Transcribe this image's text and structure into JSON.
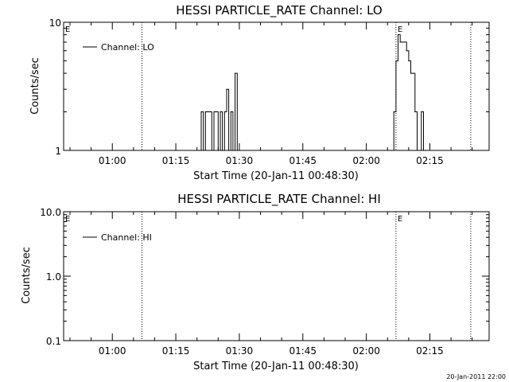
{
  "chart_data": [
    {
      "type": "line",
      "title": "HESSI PARTICLE_RATE Channel: LO",
      "xlabel": "Start Time (20-Jan-11 00:48:30)",
      "ylabel": "Counts/sec",
      "xlim": [
        "00:48:30",
        "02:29:00"
      ],
      "ylim": [
        1,
        10
      ],
      "yscale": "log",
      "ytick_labels": [
        "1",
        "10"
      ],
      "xtick_labels": [
        "01:00",
        "01:15",
        "01:30",
        "01:45",
        "02:00",
        "02:15"
      ],
      "legend_position": "top-left",
      "event_markers": [
        "01:07:00",
        "02:07:00",
        "02:24:40"
      ],
      "flags": [
        {
          "text": "E",
          "x": "00:48:30"
        },
        {
          "text": "E",
          "x": "02:07:00"
        }
      ],
      "series": [
        {
          "name": "Channel: LO",
          "x": [
            "01:20:30",
            "01:21:00",
            "01:21:30",
            "01:22:00",
            "01:22:30",
            "01:23:00",
            "01:23:30",
            "01:24:00",
            "01:24:30",
            "01:25:00",
            "01:25:30",
            "01:26:00",
            "01:26:30",
            "01:27:00",
            "01:27:30",
            "01:28:00",
            "01:28:30",
            "01:29:00",
            "01:29:30",
            "02:06:00",
            "02:06:30",
            "02:07:00",
            "02:07:30",
            "02:08:00",
            "02:08:30",
            "02:09:00",
            "02:09:30",
            "02:10:00",
            "02:10:30",
            "02:11:00",
            "02:11:30",
            "02:12:00",
            "02:12:30",
            "02:13:00",
            "02:13:30",
            "02:14:00",
            "02:14:30"
          ],
          "y": [
            1,
            2,
            1,
            2,
            2,
            2,
            1,
            2,
            2,
            1,
            2,
            1,
            2,
            3,
            1,
            2,
            1,
            4,
            1,
            1,
            2,
            5,
            8,
            7,
            7,
            7,
            6,
            5,
            4,
            4,
            2,
            1,
            1,
            2,
            1,
            1,
            1
          ]
        }
      ]
    },
    {
      "type": "line",
      "title": "HESSI PARTICLE_RATE Channel: HI",
      "xlabel": "Start Time (20-Jan-11 00:48:30)",
      "ylabel": "Counts/sec",
      "xlim": [
        "00:48:30",
        "02:29:00"
      ],
      "ylim": [
        0.1,
        10
      ],
      "yscale": "log",
      "ytick_labels": [
        "0.1",
        "1.0",
        "10.0"
      ],
      "xtick_labels": [
        "01:00",
        "01:15",
        "01:30",
        "01:45",
        "02:00",
        "02:15"
      ],
      "legend_position": "top-left",
      "event_markers": [
        "01:07:00",
        "02:07:00",
        "02:24:40"
      ],
      "flags": [
        {
          "text": "E",
          "x": "00:48:30"
        },
        {
          "text": "E",
          "x": "02:07:00"
        }
      ],
      "series": [
        {
          "name": "Channel: HI",
          "x": [],
          "y": []
        }
      ]
    }
  ],
  "footer": {
    "timestamp": "20-Jan-2011 22:00"
  }
}
